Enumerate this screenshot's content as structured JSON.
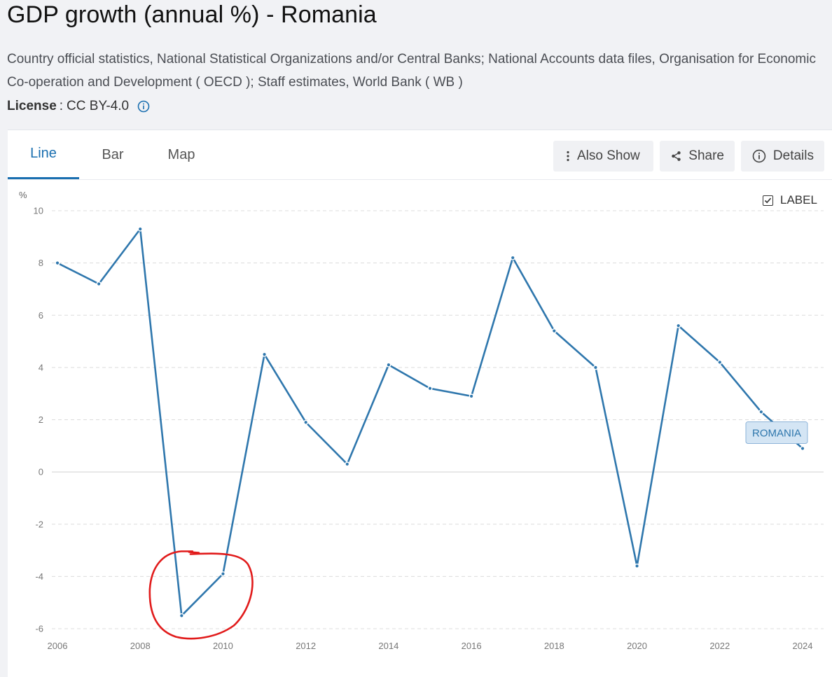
{
  "header": {
    "title": "GDP growth (annual %) - Romania",
    "source": "Country official statistics, National Statistical Organizations and/or Central Banks; National Accounts data files, Organisation for Economic Co-operation and Development ( OECD ); Staff estimates, World Bank ( WB )",
    "license_key": "License",
    "license_sep": ":",
    "license_value": "CC BY-4.0"
  },
  "tabs": [
    {
      "label": "Line",
      "active": true
    },
    {
      "label": "Bar",
      "active": false
    },
    {
      "label": "Map",
      "active": false
    }
  ],
  "toolbar": {
    "also_show": "Also Show",
    "share": "Share",
    "details": "Details"
  },
  "label_toggle": {
    "label": "LABEL",
    "checked": true
  },
  "colors": {
    "accent": "#1a6fb0",
    "series": "#2f77ad",
    "annotation": "#e11b1b",
    "label_bg": "#d4e5f4",
    "label_border": "#8db4d8"
  },
  "chart_data": {
    "type": "line",
    "ylabel": "%",
    "ylim": [
      -6,
      10
    ],
    "yticks": [
      -6,
      -4,
      -2,
      0,
      2,
      4,
      6,
      8,
      10
    ],
    "xlim": [
      2006,
      2024
    ],
    "xticks": [
      2006,
      2008,
      2010,
      2012,
      2014,
      2016,
      2018,
      2020,
      2022,
      2024
    ],
    "grid": true,
    "series": [
      {
        "name": "ROMANIA",
        "x": [
          2006,
          2007,
          2008,
          2009,
          2010,
          2011,
          2012,
          2013,
          2014,
          2015,
          2016,
          2017,
          2018,
          2019,
          2020,
          2021,
          2022,
          2023,
          2024
        ],
        "values": [
          8.0,
          7.2,
          9.3,
          -5.5,
          -3.9,
          4.5,
          1.9,
          0.3,
          4.1,
          3.2,
          2.9,
          8.2,
          5.4,
          4.0,
          -3.6,
          5.6,
          4.2,
          2.3,
          0.9
        ]
      }
    ],
    "annotations": [
      {
        "type": "hand-drawn-circle",
        "around_x": [
          2009,
          2010
        ]
      }
    ]
  }
}
